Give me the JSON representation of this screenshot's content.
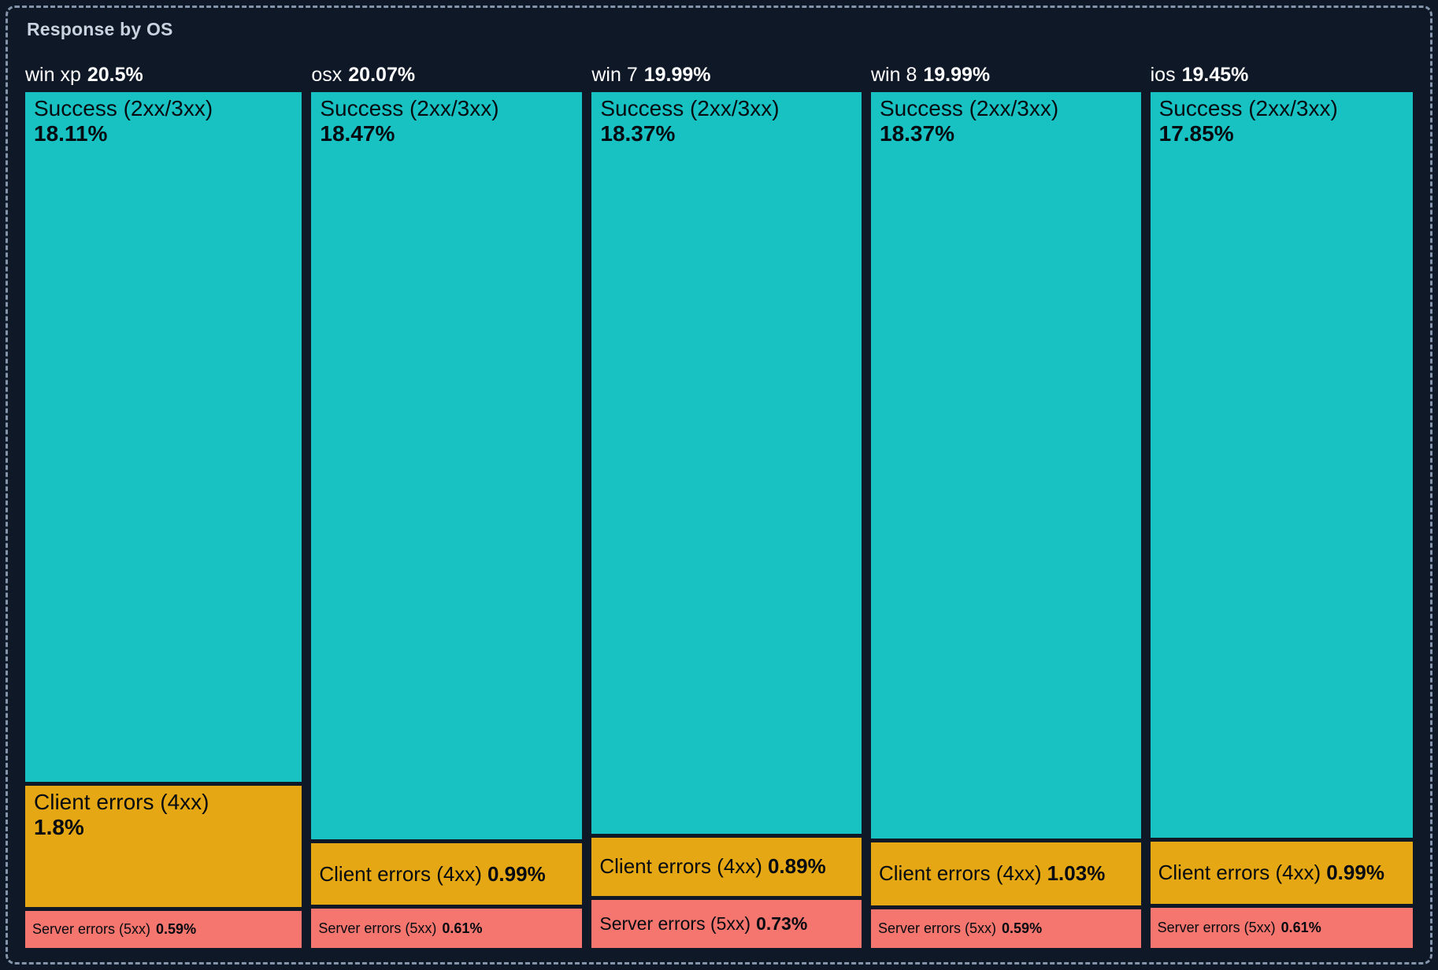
{
  "panel": {
    "title": "Response by OS"
  },
  "colors": {
    "background": "#0e1826",
    "panel_border": "#8394ab",
    "title_text": "#c9d3e0",
    "column_label_text": "#ffffff",
    "segment_text": "#060b11",
    "success": "#18c2c2",
    "client_errors": "#e5a713",
    "server_errors": "#f4766e"
  },
  "chart_data": {
    "type": "treemap",
    "title": "Response by OS",
    "group_by": "OS",
    "legend_position": "none",
    "columns": [
      {
        "name": "win xp",
        "total": 20.5,
        "total_label": "20.5%",
        "segments": [
          {
            "label": "Success (2xx/3xx)",
            "value": 18.11,
            "value_label": "18.11%",
            "color_key": "success"
          },
          {
            "label": "Client errors (4xx)",
            "value": 1.8,
            "value_label": "1.8%",
            "color_key": "client_errors"
          },
          {
            "label": "Server errors (5xx)",
            "value": 0.59,
            "value_label": "0.59%",
            "color_key": "server_errors"
          }
        ]
      },
      {
        "name": "osx",
        "total": 20.07,
        "total_label": "20.07%",
        "segments": [
          {
            "label": "Success (2xx/3xx)",
            "value": 18.47,
            "value_label": "18.47%",
            "color_key": "success"
          },
          {
            "label": "Client errors (4xx)",
            "value": 0.99,
            "value_label": "0.99%",
            "color_key": "client_errors"
          },
          {
            "label": "Server errors (5xx)",
            "value": 0.61,
            "value_label": "0.61%",
            "color_key": "server_errors"
          }
        ]
      },
      {
        "name": "win 7",
        "total": 19.99,
        "total_label": "19.99%",
        "segments": [
          {
            "label": "Success (2xx/3xx)",
            "value": 18.37,
            "value_label": "18.37%",
            "color_key": "success"
          },
          {
            "label": "Client errors (4xx)",
            "value": 0.89,
            "value_label": "0.89%",
            "color_key": "client_errors"
          },
          {
            "label": "Server errors (5xx)",
            "value": 0.73,
            "value_label": "0.73%",
            "color_key": "server_errors"
          }
        ]
      },
      {
        "name": "win 8",
        "total": 19.99,
        "total_label": "19.99%",
        "segments": [
          {
            "label": "Success (2xx/3xx)",
            "value": 18.37,
            "value_label": "18.37%",
            "color_key": "success"
          },
          {
            "label": "Client errors (4xx)",
            "value": 1.03,
            "value_label": "1.03%",
            "color_key": "client_errors"
          },
          {
            "label": "Server errors (5xx)",
            "value": 0.59,
            "value_label": "0.59%",
            "color_key": "server_errors"
          }
        ]
      },
      {
        "name": "ios",
        "total": 19.45,
        "total_label": "19.45%",
        "segments": [
          {
            "label": "Success (2xx/3xx)",
            "value": 17.85,
            "value_label": "17.85%",
            "color_key": "success"
          },
          {
            "label": "Client errors (4xx)",
            "value": 0.99,
            "value_label": "0.99%",
            "color_key": "client_errors"
          },
          {
            "label": "Server errors (5xx)",
            "value": 0.61,
            "value_label": "0.61%",
            "color_key": "server_errors"
          }
        ]
      }
    ]
  }
}
